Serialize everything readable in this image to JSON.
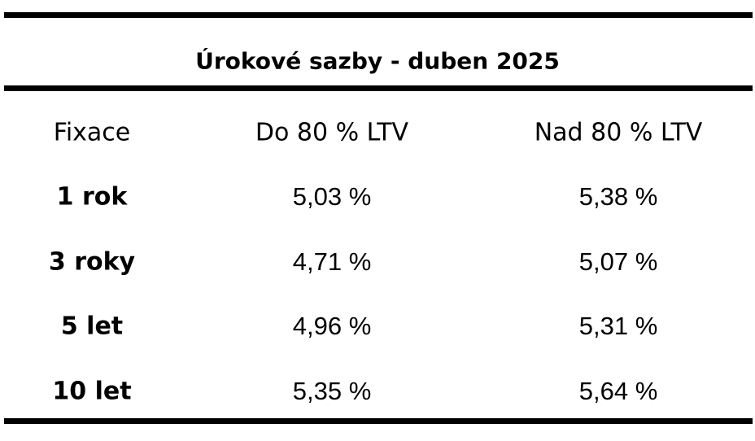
{
  "table": {
    "title": "Úrokové sazby - duben 2025",
    "header": [
      "Fixace",
      "Do 80 % LTV",
      "Nad 80 % LTV"
    ],
    "rows": [
      [
        "1 rok",
        "5,03 %",
        "5,38 %"
      ],
      [
        "3 roky",
        "4,71 %",
        "5,07 %"
      ],
      [
        "5 let",
        "4,96 %",
        "5,31 %"
      ],
      [
        "10 let",
        "5,35 %",
        "5,64 %"
      ]
    ]
  }
}
